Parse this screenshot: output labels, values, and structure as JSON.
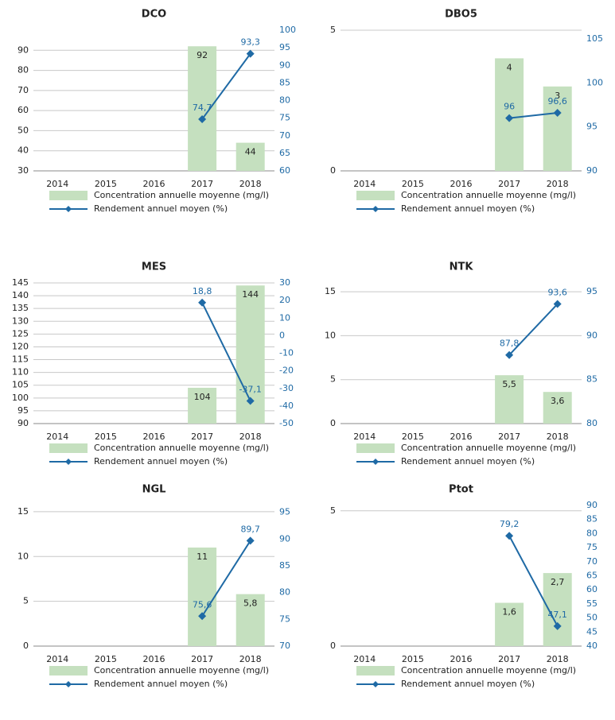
{
  "chart_data": [
    {
      "type": "combo",
      "title": "DCO",
      "categories": [
        "2014",
        "2015",
        "2016",
        "2017",
        "2018"
      ],
      "grid": true,
      "ylim": [
        30,
        100
      ],
      "yticks": [
        30,
        40,
        50,
        60,
        70,
        80,
        90
      ],
      "y2lim": [
        60,
        100
      ],
      "y2ticks": [
        60,
        65,
        70,
        75,
        80,
        85,
        90,
        95,
        100
      ],
      "series": [
        {
          "name": "Concentration annuelle moyenne (mg/l)",
          "type": "bar",
          "color": "#c5e0bf",
          "values": [
            null,
            null,
            null,
            92,
            44
          ]
        },
        {
          "name": "Rendement annuel moyen (%)",
          "type": "line",
          "axis": "y2",
          "color": "#1f6aa5",
          "values": [
            null,
            null,
            null,
            74.7,
            93.3
          ],
          "value_labels": [
            null,
            null,
            null,
            "74,7",
            "93,3"
          ]
        }
      ]
    },
    {
      "type": "combo",
      "title": "DBO5",
      "categories": [
        "2014",
        "2015",
        "2016",
        "2017",
        "2018"
      ],
      "grid": true,
      "ylim": [
        0,
        5
      ],
      "yticks": [
        0,
        5
      ],
      "y2lim": [
        90,
        106
      ],
      "y2ticks": [
        90,
        95,
        100,
        105
      ],
      "series": [
        {
          "name": "Concentration annuelle moyenne (mg/l)",
          "type": "bar",
          "color": "#c5e0bf",
          "values": [
            null,
            null,
            null,
            4,
            3
          ]
        },
        {
          "name": "Rendement annuel moyen (%)",
          "type": "line",
          "axis": "y2",
          "color": "#1f6aa5",
          "values": [
            null,
            null,
            null,
            96,
            96.6
          ],
          "value_labels": [
            null,
            null,
            null,
            "96",
            "96,6"
          ]
        }
      ]
    },
    {
      "type": "combo",
      "title": "MES",
      "categories": [
        "2014",
        "2015",
        "2016",
        "2017",
        "2018"
      ],
      "grid": true,
      "ylim": [
        90,
        145
      ],
      "yticks": [
        90,
        95,
        100,
        105,
        110,
        115,
        120,
        125,
        130,
        135,
        140,
        145
      ],
      "y2lim": [
        -50,
        30
      ],
      "y2ticks": [
        -50,
        -40,
        -30,
        -20,
        -10,
        0,
        10,
        20,
        30
      ],
      "series": [
        {
          "name": "Concentration annuelle moyenne (mg/l)",
          "type": "bar",
          "color": "#c5e0bf",
          "values": [
            null,
            null,
            null,
            104,
            144
          ]
        },
        {
          "name": "Rendement annuel moyen (%)",
          "type": "line",
          "axis": "y2",
          "color": "#1f6aa5",
          "values": [
            null,
            null,
            null,
            18.8,
            -37.1
          ],
          "value_labels": [
            null,
            null,
            null,
            "18,8",
            "-37,1"
          ]
        }
      ]
    },
    {
      "type": "combo",
      "title": "NTK",
      "categories": [
        "2014",
        "2015",
        "2016",
        "2017",
        "2018"
      ],
      "grid": true,
      "ylim": [
        0,
        16
      ],
      "yticks": [
        0,
        5,
        10,
        15
      ],
      "y2lim": [
        80,
        96
      ],
      "y2ticks": [
        80,
        85,
        90,
        95
      ],
      "series": [
        {
          "name": "Concentration annuelle moyenne (mg/l)",
          "type": "bar",
          "color": "#c5e0bf",
          "values": [
            null,
            null,
            null,
            5.5,
            3.6
          ],
          "value_labels": [
            null,
            null,
            null,
            "5,5",
            "3,6"
          ]
        },
        {
          "name": "Rendement annuel moyen (%)",
          "type": "line",
          "axis": "y2",
          "color": "#1f6aa5",
          "values": [
            null,
            null,
            null,
            87.8,
            93.6
          ],
          "value_labels": [
            null,
            null,
            null,
            "87,8",
            "93,6"
          ]
        }
      ]
    },
    {
      "type": "combo",
      "title": "NGL",
      "categories": [
        "2014",
        "2015",
        "2016",
        "2017",
        "2018"
      ],
      "grid": true,
      "ylim": [
        0,
        15.7
      ],
      "yticks": [
        0,
        5,
        10,
        15
      ],
      "y2lim": [
        70,
        96.3
      ],
      "y2ticks": [
        70,
        75,
        80,
        85,
        90,
        95
      ],
      "series": [
        {
          "name": "Concentration annuelle moyenne (mg/l)",
          "type": "bar",
          "color": "#c5e0bf",
          "values": [
            null,
            null,
            null,
            11,
            5.8
          ],
          "value_labels": [
            null,
            null,
            null,
            "11",
            "5,8"
          ]
        },
        {
          "name": "Rendement annuel moyen (%)",
          "type": "line",
          "axis": "y2",
          "color": "#1f6aa5",
          "values": [
            null,
            null,
            null,
            75.6,
            89.7
          ],
          "value_labels": [
            null,
            null,
            null,
            "75,6",
            "89,7"
          ]
        }
      ]
    },
    {
      "type": "combo",
      "title": "Ptot",
      "categories": [
        "2014",
        "2015",
        "2016",
        "2017",
        "2018"
      ],
      "grid": true,
      "ylim": [
        0,
        5.2
      ],
      "yticks": [
        0,
        5
      ],
      "y2lim": [
        40,
        90
      ],
      "y2ticks": [
        40,
        45,
        50,
        55,
        60,
        65,
        70,
        75,
        80,
        85,
        90
      ],
      "series": [
        {
          "name": "Concentration annuelle moyenne (mg/l)",
          "type": "bar",
          "color": "#c5e0bf",
          "values": [
            null,
            null,
            null,
            1.6,
            2.7
          ],
          "value_labels": [
            null,
            null,
            null,
            "1,6",
            "2,7"
          ]
        },
        {
          "name": "Rendement annuel moyen (%)",
          "type": "line",
          "axis": "y2",
          "color": "#1f6aa5",
          "values": [
            null,
            null,
            null,
            79.2,
            47.1
          ],
          "value_labels": [
            null,
            null,
            null,
            "79,2",
            "47,1"
          ]
        }
      ]
    }
  ]
}
